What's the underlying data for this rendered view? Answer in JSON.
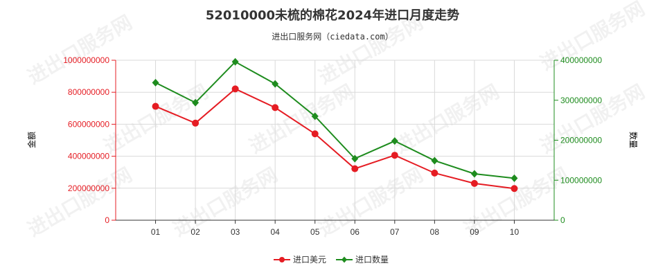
{
  "chart_data": {
    "type": "line",
    "title": "52010000未梳的棉花2024年进口月度走势",
    "subtitle": "进出口服务网（ciedata.com）",
    "categories": [
      "01",
      "02",
      "03",
      "04",
      "05",
      "06",
      "07",
      "08",
      "09",
      "10"
    ],
    "y_left": {
      "label": "金额",
      "min": 0,
      "max": 1000000000,
      "ticks": [
        0,
        200000000,
        400000000,
        600000000,
        800000000,
        1000000000
      ],
      "color": "#e51c23"
    },
    "y_right": {
      "label": "数量",
      "min": 0,
      "max": 400000000,
      "ticks": [
        0,
        100000000,
        200000000,
        300000000,
        400000000
      ],
      "color": "#1e8c1e"
    },
    "series": [
      {
        "name": "进口美元",
        "axis": "left",
        "color": "#e51c23",
        "marker": "circle",
        "values": [
          712000000,
          607000000,
          821000000,
          704000000,
          540000000,
          322000000,
          406000000,
          295000000,
          230000000,
          198000000
        ]
      },
      {
        "name": "进口数量",
        "axis": "right",
        "color": "#1e8c1e",
        "marker": "diamond",
        "values": [
          344000000,
          294000000,
          396000000,
          341000000,
          260000000,
          154000000,
          198000000,
          149000000,
          116000000,
          105000000
        ]
      }
    ],
    "grid": true,
    "legend": "bottom-center",
    "watermark": "进出口服务网"
  }
}
